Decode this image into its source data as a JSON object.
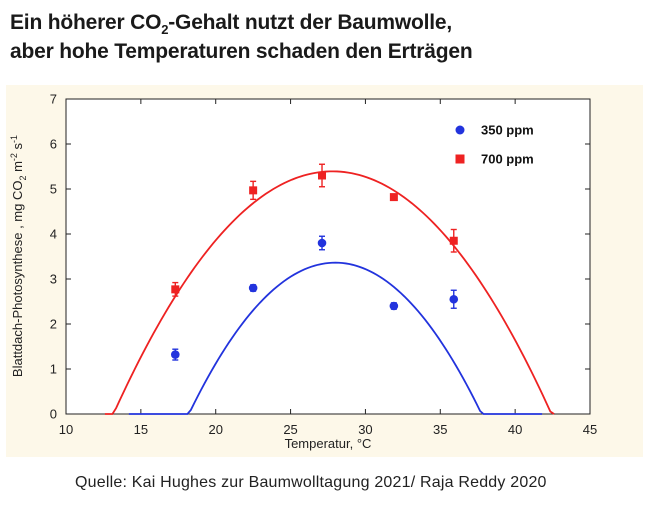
{
  "title": {
    "line1_pre": "Ein höherer CO",
    "line1_sub": "2",
    "line1_post": "-Gehalt nutzt der Baumwolle,",
    "line2": "aber hohe Temperaturen schaden den Erträgen"
  },
  "source": "Quelle: Kai Hughes zur Baumwolltagung 2021/ Raja Reddy 2020",
  "colors": {
    "series_350": "#2233dd",
    "series_700": "#ee2222",
    "panel_bg": "#fdf8e9"
  },
  "chart_data": {
    "type": "scatter",
    "xlabel": "Temperatur, °C",
    "ylabel_parts": {
      "a": "Blattdach-Photosynthese , mg CO",
      "b": "2",
      "c": " m",
      "d": "-2",
      "e": " s",
      "f": "-1"
    },
    "xlim": [
      10,
      45
    ],
    "ylim": [
      0,
      7
    ],
    "xticks": [
      10,
      15,
      20,
      25,
      30,
      35,
      40,
      45
    ],
    "yticks": [
      0,
      1,
      2,
      3,
      4,
      5,
      6,
      7
    ],
    "legend_position": "top-right",
    "series": [
      {
        "name": "350 ppm",
        "marker": "circle",
        "color": "#2233dd",
        "points": [
          {
            "x": 17.3,
            "y": 1.32,
            "err": 0.12
          },
          {
            "x": 22.5,
            "y": 2.8,
            "err": 0.07
          },
          {
            "x": 27.1,
            "y": 3.8,
            "err": 0.15
          },
          {
            "x": 31.9,
            "y": 2.4,
            "err": 0.07
          },
          {
            "x": 35.9,
            "y": 2.55,
            "err": 0.2
          }
        ],
        "fit_curve": {
          "a": -0.0352,
          "b": 1.97,
          "c": -24.2,
          "x_start": 14.2,
          "x_end": 41.8
        }
      },
      {
        "name": "700 ppm",
        "marker": "square",
        "color": "#ee2222",
        "points": [
          {
            "x": 17.3,
            "y": 2.77,
            "err": 0.15
          },
          {
            "x": 22.5,
            "y": 4.97,
            "err": 0.2
          },
          {
            "x": 27.1,
            "y": 5.3,
            "err": 0.25
          },
          {
            "x": 31.9,
            "y": 4.82,
            "err": 0.05
          },
          {
            "x": 35.9,
            "y": 3.85,
            "err": 0.25
          }
        ],
        "fit_curve": {
          "a": -0.0252,
          "b": 1.401,
          "c": -14.08,
          "x_start": 12.6,
          "x_end": 42.6
        }
      }
    ]
  }
}
